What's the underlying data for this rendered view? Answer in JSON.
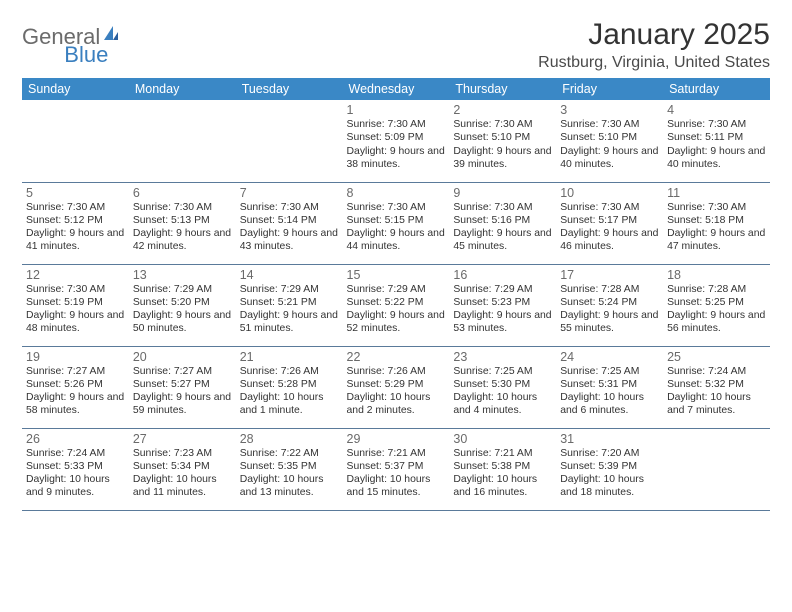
{
  "brand": {
    "text1": "General",
    "text2": "Blue"
  },
  "title": "January 2025",
  "location": "Rustburg, Virginia, United States",
  "colors": {
    "header_bg": "#3a88c6",
    "header_text": "#ffffff",
    "cell_border": "#5a7a9a",
    "text": "#333333",
    "brand_gray": "#6b6b6b",
    "brand_blue": "#3a7fbf"
  },
  "weekdays": [
    "Sunday",
    "Monday",
    "Tuesday",
    "Wednesday",
    "Thursday",
    "Friday",
    "Saturday"
  ],
  "weeks": [
    [
      null,
      null,
      null,
      {
        "d": "1",
        "sr": "7:30 AM",
        "ss": "5:09 PM",
        "dl": "9 hours and 38 minutes."
      },
      {
        "d": "2",
        "sr": "7:30 AM",
        "ss": "5:10 PM",
        "dl": "9 hours and 39 minutes."
      },
      {
        "d": "3",
        "sr": "7:30 AM",
        "ss": "5:10 PM",
        "dl": "9 hours and 40 minutes."
      },
      {
        "d": "4",
        "sr": "7:30 AM",
        "ss": "5:11 PM",
        "dl": "9 hours and 40 minutes."
      }
    ],
    [
      {
        "d": "5",
        "sr": "7:30 AM",
        "ss": "5:12 PM",
        "dl": "9 hours and 41 minutes."
      },
      {
        "d": "6",
        "sr": "7:30 AM",
        "ss": "5:13 PM",
        "dl": "9 hours and 42 minutes."
      },
      {
        "d": "7",
        "sr": "7:30 AM",
        "ss": "5:14 PM",
        "dl": "9 hours and 43 minutes."
      },
      {
        "d": "8",
        "sr": "7:30 AM",
        "ss": "5:15 PM",
        "dl": "9 hours and 44 minutes."
      },
      {
        "d": "9",
        "sr": "7:30 AM",
        "ss": "5:16 PM",
        "dl": "9 hours and 45 minutes."
      },
      {
        "d": "10",
        "sr": "7:30 AM",
        "ss": "5:17 PM",
        "dl": "9 hours and 46 minutes."
      },
      {
        "d": "11",
        "sr": "7:30 AM",
        "ss": "5:18 PM",
        "dl": "9 hours and 47 minutes."
      }
    ],
    [
      {
        "d": "12",
        "sr": "7:30 AM",
        "ss": "5:19 PM",
        "dl": "9 hours and 48 minutes."
      },
      {
        "d": "13",
        "sr": "7:29 AM",
        "ss": "5:20 PM",
        "dl": "9 hours and 50 minutes."
      },
      {
        "d": "14",
        "sr": "7:29 AM",
        "ss": "5:21 PM",
        "dl": "9 hours and 51 minutes."
      },
      {
        "d": "15",
        "sr": "7:29 AM",
        "ss": "5:22 PM",
        "dl": "9 hours and 52 minutes."
      },
      {
        "d": "16",
        "sr": "7:29 AM",
        "ss": "5:23 PM",
        "dl": "9 hours and 53 minutes."
      },
      {
        "d": "17",
        "sr": "7:28 AM",
        "ss": "5:24 PM",
        "dl": "9 hours and 55 minutes."
      },
      {
        "d": "18",
        "sr": "7:28 AM",
        "ss": "5:25 PM",
        "dl": "9 hours and 56 minutes."
      }
    ],
    [
      {
        "d": "19",
        "sr": "7:27 AM",
        "ss": "5:26 PM",
        "dl": "9 hours and 58 minutes."
      },
      {
        "d": "20",
        "sr": "7:27 AM",
        "ss": "5:27 PM",
        "dl": "9 hours and 59 minutes."
      },
      {
        "d": "21",
        "sr": "7:26 AM",
        "ss": "5:28 PM",
        "dl": "10 hours and 1 minute."
      },
      {
        "d": "22",
        "sr": "7:26 AM",
        "ss": "5:29 PM",
        "dl": "10 hours and 2 minutes."
      },
      {
        "d": "23",
        "sr": "7:25 AM",
        "ss": "5:30 PM",
        "dl": "10 hours and 4 minutes."
      },
      {
        "d": "24",
        "sr": "7:25 AM",
        "ss": "5:31 PM",
        "dl": "10 hours and 6 minutes."
      },
      {
        "d": "25",
        "sr": "7:24 AM",
        "ss": "5:32 PM",
        "dl": "10 hours and 7 minutes."
      }
    ],
    [
      {
        "d": "26",
        "sr": "7:24 AM",
        "ss": "5:33 PM",
        "dl": "10 hours and 9 minutes."
      },
      {
        "d": "27",
        "sr": "7:23 AM",
        "ss": "5:34 PM",
        "dl": "10 hours and 11 minutes."
      },
      {
        "d": "28",
        "sr": "7:22 AM",
        "ss": "5:35 PM",
        "dl": "10 hours and 13 minutes."
      },
      {
        "d": "29",
        "sr": "7:21 AM",
        "ss": "5:37 PM",
        "dl": "10 hours and 15 minutes."
      },
      {
        "d": "30",
        "sr": "7:21 AM",
        "ss": "5:38 PM",
        "dl": "10 hours and 16 minutes."
      },
      {
        "d": "31",
        "sr": "7:20 AM",
        "ss": "5:39 PM",
        "dl": "10 hours and 18 minutes."
      },
      null
    ]
  ],
  "labels": {
    "sunrise": "Sunrise:",
    "sunset": "Sunset:",
    "daylight": "Daylight:"
  }
}
